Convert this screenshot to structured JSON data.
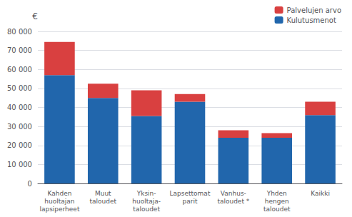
{
  "chart_data": {
    "type": "bar",
    "stacked": true,
    "categories": [
      "Kahden\nhuoltajan\nlapsiperheet",
      "Muut\ntaloudet",
      "Yksin-\nhuoltaja-\ntaloudet",
      "Lapsettomat\nparit",
      "Vanhus-\ntaloudet *",
      "Yhden\nhengen\ntaloudet",
      "Kaikki"
    ],
    "series": [
      {
        "name": "Kulutusmenot",
        "color": "#2166AC",
        "values": [
          57000,
          45000,
          35500,
          43000,
          24000,
          24000,
          36000
        ]
      },
      {
        "name": "Palvelujen arvo",
        "color": "#D94040",
        "values": [
          17500,
          7500,
          13500,
          4000,
          4000,
          2500,
          7000
        ]
      }
    ],
    "ylabel": "€",
    "ylim": [
      0,
      80000
    ],
    "yticks": [
      0,
      {
        "value": 10000,
        "label": "10 000"
      },
      {
        "value": 20000,
        "label": "20 000"
      },
      {
        "value": 30000,
        "label": "30 000"
      },
      {
        "value": 40000,
        "label": "40 000"
      },
      {
        "value": 50000,
        "label": "50 000"
      },
      {
        "value": 60000,
        "label": "60 000"
      },
      {
        "value": 70000,
        "label": "70 000"
      },
      {
        "value": 80000,
        "label": "80 000"
      }
    ],
    "grid": true,
    "legend": "upper right"
  }
}
